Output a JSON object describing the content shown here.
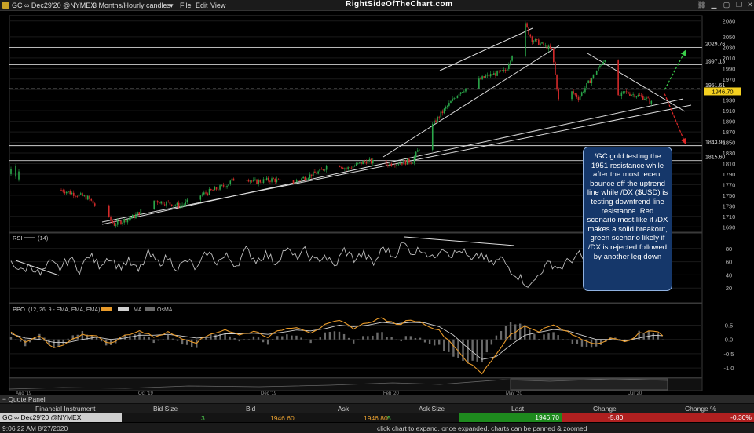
{
  "window": {
    "symbol_label": "GC ∞ Dec29'20 @NYMEX",
    "interval_label": "3 Months/Hourly candles",
    "menu": [
      "File",
      "Edit",
      "View"
    ],
    "brand": "RightSideOfTheChart.com"
  },
  "annotation_text": "/GC gold testing the 1951 resistance while after the most recent bounce off the uptrend line while /DX ($USD) is testing downtrend line resistance. Red scenario most like if /DX makes a solid breakout, green scenario likely if /DX is rejected followed by another leg down",
  "colors": {
    "bull": "#2aa84a",
    "bear": "#d42a2a",
    "rsi_line": "#bdbdbd",
    "ppo_line": "#e89a2a",
    "ppo_signal": "#d0d0d0",
    "histogram": "#6b6b6b",
    "price_tag": "#f4d020",
    "annotation_bg": "#15376a"
  },
  "chart_data": [
    {
      "type": "candlestick",
      "title": "GC ∞ Dec29'20 @NYMEX 3 Months/Hourly candles",
      "y_ticks": [
        1690,
        1710,
        1730,
        1750,
        1770,
        1790,
        1810,
        1830,
        1850,
        1870,
        1890,
        1910,
        1930,
        1950,
        1970,
        1990,
        2010,
        2030,
        2050,
        2080.0
      ],
      "ylim": [
        1680,
        2090
      ],
      "x_ticks": [
        "Jun 1",
        "Jun 8",
        "Jun 15",
        "Jun 22",
        "Jun 29",
        "Jul 6",
        "Jul 13",
        "Jul 20",
        "Jul 27",
        "Aug 3",
        "Aug 10",
        "Aug 17",
        "Aug 24"
      ],
      "price_path": [
        [
          "May 28",
          1760
        ],
        [
          "Jun 1",
          1745
        ],
        [
          "Jun 5",
          1695
        ],
        [
          "Jun 8",
          1710
        ],
        [
          "Jun 11",
          1740
        ],
        [
          "Jun 15",
          1730
        ],
        [
          "Jun 18",
          1750
        ],
        [
          "Jun 22",
          1770
        ],
        [
          "Jun 24",
          1790
        ],
        [
          "Jun 26",
          1775
        ],
        [
          "Jun 29",
          1780
        ],
        [
          "Jul 1",
          1770
        ],
        [
          "Jul 3",
          1780
        ],
        [
          "Jul 6",
          1795
        ],
        [
          "Jul 8",
          1815
        ],
        [
          "Jul 10",
          1800
        ],
        [
          "Jul 13",
          1815
        ],
        [
          "Jul 16",
          1808
        ],
        [
          "Jul 20",
          1815
        ],
        [
          "Jul 22",
          1865
        ],
        [
          "Jul 24",
          1900
        ],
        [
          "Jul 27",
          1945
        ],
        [
          "Jul 29",
          1960
        ],
        [
          "Jul 31",
          1975
        ],
        [
          "Aug 3",
          1985
        ],
        [
          "Aug 5",
          2050
        ],
        [
          "Aug 6",
          2072
        ],
        [
          "Aug 7",
          2045
        ],
        [
          "Aug 10",
          2025
        ],
        [
          "Aug 11",
          1930
        ],
        [
          "Aug 12",
          1875
        ],
        [
          "Aug 13",
          1945
        ],
        [
          "Aug 14",
          1935
        ],
        [
          "Aug 17",
          1990
        ],
        [
          "Aug 18",
          2010
        ],
        [
          "Aug 19",
          1980
        ],
        [
          "Aug 20",
          1935
        ],
        [
          "Aug 21",
          1945
        ],
        [
          "Aug 24",
          1935
        ],
        [
          "Aug 25",
          1925
        ],
        [
          "Aug 26",
          1930
        ],
        [
          "Aug 27",
          1946.7
        ]
      ],
      "horizontal_lines": [
        {
          "label": "2029.76",
          "value": 2029.76,
          "style": "solid"
        },
        {
          "label": "1997.13",
          "value": 1997.13,
          "style": "solid"
        },
        {
          "label": "1951.61",
          "value": 1951.61,
          "style": "dashed"
        },
        {
          "label": "1843.96",
          "value": 1843.96,
          "style": "solid"
        },
        {
          "label": "1815.60",
          "value": 1815.6,
          "style": "solid"
        }
      ],
      "last_price_label": "1946.70",
      "last_price": 1946.7,
      "scenarios": [
        {
          "name": "green",
          "from": [
            "Aug 27",
            1950
          ],
          "to": [
            "Aug 31",
            2022
          ]
        },
        {
          "name": "red",
          "from": [
            "Aug 27",
            1942
          ],
          "to": [
            "Aug 31",
            1850
          ]
        }
      ],
      "overview_ticks": [
        "Aug '19",
        "Oct '19",
        "Dec '19",
        "Feb '20",
        "May '20",
        "Jul '20"
      ]
    },
    {
      "type": "line",
      "title": "RSI",
      "params_label": "(14)",
      "y_ticks": [
        20,
        40,
        60,
        80
      ],
      "ylim": [
        0,
        100
      ],
      "series": [
        {
          "values": [
            62,
            45,
            55,
            40,
            58,
            50,
            65,
            48,
            70,
            55,
            68,
            52,
            60,
            45,
            72,
            58,
            66,
            50,
            62,
            48,
            75,
            60,
            68,
            55,
            78,
            62,
            72,
            58,
            80,
            66,
            76,
            60,
            70,
            52,
            78,
            64,
            72,
            56,
            82,
            68,
            88,
            74,
            80,
            64,
            84,
            70,
            78,
            60,
            72,
            55,
            65,
            48,
            35,
            22,
            45,
            58,
            50,
            62,
            70,
            52,
            60,
            44,
            55,
            40,
            50,
            45,
            52,
            42
          ]
        }
      ]
    },
    {
      "type": "line",
      "title": "PPO",
      "params_label": "(12, 26, 9 - EMA, EMA, EMA)",
      "legend": [
        "MA",
        "OsMA"
      ],
      "y_ticks": [
        -1.0,
        -0.5,
        0.0,
        0.5
      ],
      "ylim": [
        -1.3,
        0.9
      ],
      "series": [
        {
          "name": "PPO",
          "values": [
            0.25,
            -0.1,
            0.1,
            -0.3,
            -0.1,
            0.2,
            0.1,
            -0.15,
            0.15,
            0.3,
            0.1,
            0.25,
            0.05,
            -0.1,
            0.2,
            0.35,
            0.15,
            0.3,
            0.1,
            0.35,
            0.45,
            0.25,
            0.5,
            0.65,
            0.4,
            0.6,
            0.75,
            0.5,
            0.7,
            0.55,
            0.3,
            -0.2,
            -0.8,
            -1.2,
            -0.5,
            0.2,
            0.45,
            0.3,
            0.5,
            0.25,
            0.0,
            -0.15,
            0.05,
            -0.1,
            0.2,
            0.3,
            0.1
          ]
        },
        {
          "name": "MA",
          "values": [
            0.2,
            0.05,
            0.0,
            -0.1,
            -0.1,
            0.0,
            0.08,
            0.0,
            0.05,
            0.15,
            0.15,
            0.18,
            0.12,
            0.05,
            0.08,
            0.2,
            0.2,
            0.22,
            0.18,
            0.25,
            0.33,
            0.3,
            0.38,
            0.5,
            0.45,
            0.5,
            0.6,
            0.55,
            0.6,
            0.58,
            0.45,
            0.15,
            -0.3,
            -0.7,
            -0.6,
            -0.2,
            0.15,
            0.25,
            0.35,
            0.3,
            0.15,
            0.0,
            0.0,
            -0.05,
            0.05,
            0.15,
            0.12
          ]
        }
      ]
    }
  ],
  "quote_panel": {
    "title": "Quote Panel",
    "headers": [
      "Financial Instrument",
      "Bid Size",
      "Bid",
      "Ask",
      "Ask Size",
      "Last",
      "Change",
      "Change %"
    ],
    "row": {
      "instrument": "GC ∞ Dec29'20 @NYMEX",
      "bid_size": "3",
      "bid": "1946.60",
      "ask": "1946.80",
      "ask_size": "5",
      "last": "1946.70",
      "change": "-5.80",
      "change_pct": "-0.30%"
    }
  },
  "status": {
    "time": "9:06:22 AM 8/27/2020",
    "hint": "click chart to expand. once expanded, charts can be panned & zoomed"
  }
}
